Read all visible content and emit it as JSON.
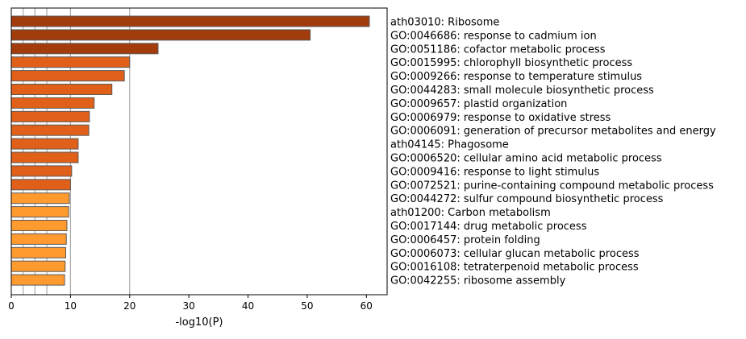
{
  "chart_data": {
    "type": "bar",
    "orientation": "horizontal",
    "xlabel": "-log10(P)",
    "xlim": [
      0,
      63.5
    ],
    "xticks": [
      0,
      10,
      20,
      30,
      40,
      50,
      60
    ],
    "reference_lines": [
      2,
      4,
      6,
      10,
      20
    ],
    "grid": false,
    "categories": [
      "ath03010: Ribosome",
      "GO:0046686: response to cadmium ion",
      "GO:0051186: cofactor metabolic process",
      "GO:0015995: chlorophyll biosynthetic process",
      "GO:0009266: response to temperature stimulus",
      "GO:0044283: small molecule biosynthetic process",
      "GO:0009657: plastid organization",
      "GO:0006979: response to oxidative stress",
      "GO:0006091: generation of precursor metabolites and energy",
      "ath04145: Phagosome",
      "GO:0006520: cellular amino acid metabolic process",
      "GO:0009416: response to light stimulus",
      "GO:0072521: purine-containing compound metabolic process",
      "GO:0044272: sulfur compound biosynthetic process",
      "ath01200: Carbon metabolism",
      "GO:0017144: drug metabolic process",
      "GO:0006457: protein folding",
      "GO:0006073: cellular glucan metabolic process",
      "GO:0016108: tetraterpenoid metabolic process",
      "GO:0042255: ribosome assembly"
    ],
    "values": [
      60.5,
      50.5,
      24.8,
      20.0,
      19.1,
      17.0,
      14.0,
      13.2,
      13.1,
      11.3,
      11.3,
      10.2,
      10.0,
      9.8,
      9.7,
      9.4,
      9.3,
      9.2,
      9.1,
      9.0
    ],
    "colors": {
      "high": "#a33c0c",
      "mid": "#e0601a",
      "low": "#ff9a2e",
      "edge": "#5a5a5a",
      "reference_line": "#aaaaaa",
      "axis": "#000000"
    },
    "bar_color_index": [
      "high",
      "high",
      "high",
      "mid",
      "mid",
      "mid",
      "mid",
      "mid",
      "mid",
      "mid",
      "mid",
      "mid",
      "mid",
      "low",
      "low",
      "low",
      "low",
      "low",
      "low",
      "low"
    ]
  }
}
